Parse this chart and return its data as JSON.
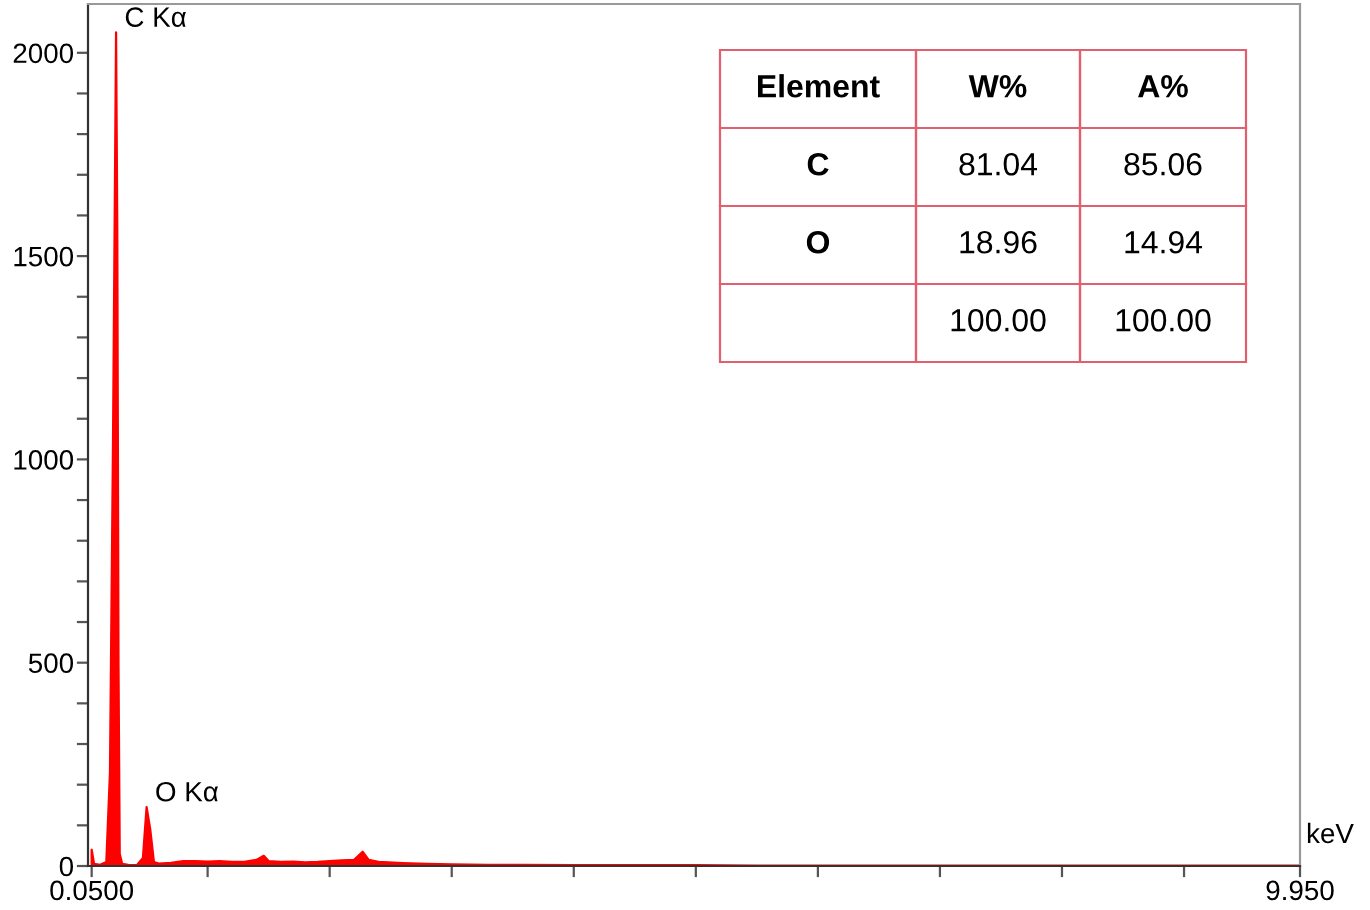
{
  "chart_data": {
    "type": "area",
    "xlabel": "keV",
    "x": [
      0.05,
      0.07,
      0.12,
      0.17,
      0.2,
      0.225,
      0.25,
      0.26,
      0.27,
      0.28,
      0.3,
      0.35,
      0.42,
      0.47,
      0.5,
      0.53,
      0.56,
      0.6,
      0.7,
      0.8,
      0.9,
      1.0,
      1.1,
      1.2,
      1.3,
      1.4,
      1.46,
      1.5,
      1.6,
      1.7,
      1.8,
      1.9,
      2.0,
      2.1,
      2.2,
      2.27,
      2.32,
      2.4,
      2.6,
      2.8,
      3.0,
      3.3,
      3.6,
      4.0,
      4.5,
      5.0,
      5.5,
      6.0,
      6.5,
      7.0,
      7.5,
      8.0,
      8.5,
      9.0,
      9.5,
      9.95
    ],
    "series": [
      {
        "color": "#ff0000",
        "values": [
          40,
          5,
          3,
          10,
          230,
          1050,
          2050,
          1560,
          490,
          30,
          5,
          3,
          2,
          20,
          145,
          90,
          10,
          6,
          8,
          12,
          12,
          11,
          12,
          10,
          10,
          15,
          25,
          12,
          10,
          11,
          9,
          10,
          12,
          14,
          15,
          35,
          15,
          10,
          7,
          5,
          4,
          3,
          3,
          2,
          2,
          2,
          1,
          1,
          1,
          1,
          1,
          1,
          1,
          1,
          1,
          1
        ]
      }
    ],
    "xlim": [
      0.02,
      9.95
    ],
    "ylim": [
      0,
      2120
    ],
    "xticks": [
      {
        "value": 0.05,
        "label": "0.0500"
      },
      {
        "value": 1,
        "label": null
      },
      {
        "value": 2,
        "label": null
      },
      {
        "value": 3,
        "label": null
      },
      {
        "value": 4,
        "label": null
      },
      {
        "value": 5,
        "label": null
      },
      {
        "value": 6,
        "label": null
      },
      {
        "value": 7,
        "label": null
      },
      {
        "value": 8,
        "label": null
      },
      {
        "value": 9,
        "label": null
      },
      {
        "value": 9.95,
        "label": "9.950"
      }
    ],
    "yticks": [
      0,
      {
        "value": 100,
        "label": null
      },
      {
        "value": 200,
        "label": null
      },
      {
        "value": 300,
        "label": null
      },
      {
        "value": 400,
        "label": null
      },
      500,
      {
        "value": 600,
        "label": null
      },
      {
        "value": 700,
        "label": null
      },
      {
        "value": 800,
        "label": null
      },
      {
        "value": 900,
        "label": null
      },
      1000,
      {
        "value": 1100,
        "label": null
      },
      {
        "value": 1200,
        "label": null
      },
      {
        "value": 1300,
        "label": null
      },
      {
        "value": 1400,
        "label": null
      },
      1500,
      {
        "value": 1600,
        "label": null
      },
      {
        "value": 1700,
        "label": null
      },
      {
        "value": 1800,
        "label": null
      },
      {
        "value": 1900,
        "label": null
      },
      2000
    ],
    "annotations": [
      {
        "text": "C Kα",
        "x": 0.25,
        "y": 2050
      },
      {
        "text": "O Kα",
        "x": 0.5,
        "y": 145
      },
      "Element",
      "W%",
      "A%",
      "C",
      "81.04",
      "85.06",
      "O",
      "18.96",
      "14.94",
      "100.00",
      "100.00"
    ],
    "grid": false,
    "legend": false
  }
}
